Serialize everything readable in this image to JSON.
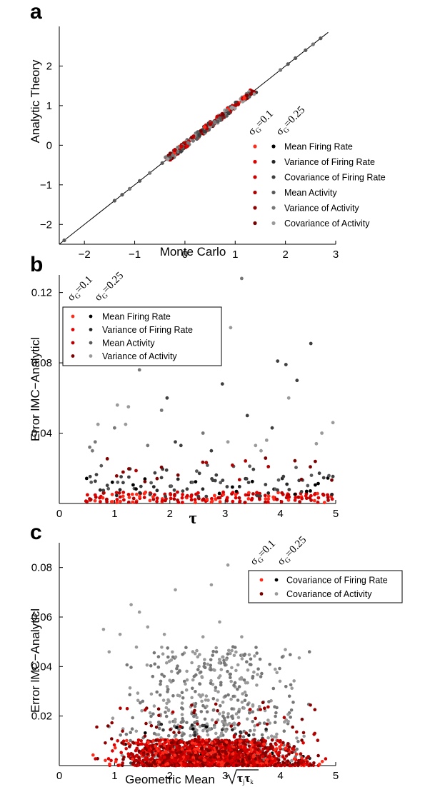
{
  "colors": {
    "sigma01": [
      "#ff2a1a",
      "#e00000",
      "#cc0000",
      "#b00000",
      "#8f0000",
      "#7a0000"
    ],
    "sigma025": [
      "#000000",
      "#262626",
      "#3f3f3f",
      "#595959",
      "#777777",
      "#9a9a9a"
    ]
  },
  "chart_data": [
    {
      "type": "scatter",
      "panel_label": "a",
      "xlabel": "Monte Carlo",
      "ylabel": "Analytic Theory",
      "xlim": [
        -2.5,
        3
      ],
      "ylim": [
        -2.5,
        3
      ],
      "xticks": [
        "−2",
        "−1",
        "0",
        "1",
        "2",
        "3"
      ],
      "yticks": [
        "−2",
        "−1",
        "0",
        "1",
        "2"
      ],
      "sigma_labels": [
        "σ_G=0.1",
        "σ_G=0.25"
      ],
      "legend": [
        "Mean Firing Rate",
        "Variance of Firing Rate",
        "Covariance of Firing Rate",
        "Mean Activity",
        "Variance of Activity",
        "Covariance of Activity"
      ],
      "legend_position": "right",
      "identity_line": true,
      "outliers": [
        [
          -2.4,
          -2.4
        ],
        [
          -1.4,
          -1.4
        ],
        [
          -1.25,
          -1.25
        ],
        [
          -1.1,
          -1.1
        ],
        [
          -0.9,
          -0.9
        ],
        [
          -0.7,
          -0.7
        ],
        [
          -0.45,
          -0.45
        ],
        [
          1.9,
          1.9
        ],
        [
          2.05,
          2.05
        ],
        [
          2.2,
          2.2
        ],
        [
          2.4,
          2.4
        ],
        [
          2.55,
          2.55
        ],
        [
          2.7,
          2.7
        ]
      ]
    },
    {
      "type": "scatter",
      "panel_label": "b",
      "xlabel": "τ",
      "ylabel": "Error lMC−Analyticl",
      "xlim": [
        0,
        5
      ],
      "ylim": [
        0,
        0.13
      ],
      "xticks": [
        "0",
        "1",
        "2",
        "3",
        "4",
        "5"
      ],
      "yticks": [
        "0.04",
        "0.08",
        "0.12"
      ],
      "sigma_labels": [
        "σ_G=0.1",
        "σ_G=0.25"
      ],
      "legend": [
        "Mean Firing Rate",
        "Variance of Firing Rate",
        "Mean Activity",
        "Variance of Activity"
      ],
      "legend_position": "top-left",
      "high_points": [
        [
          0.55,
          0.032
        ],
        [
          0.6,
          0.03
        ],
        [
          0.65,
          0.035
        ],
        [
          0.7,
          0.045
        ],
        [
          0.85,
          0.082
        ],
        [
          1.0,
          0.043
        ],
        [
          1.05,
          0.056
        ],
        [
          1.2,
          0.045
        ],
        [
          1.25,
          0.055
        ],
        [
          1.45,
          0.076
        ],
        [
          1.6,
          0.033
        ],
        [
          1.85,
          0.053
        ],
        [
          1.95,
          0.06
        ],
        [
          2.1,
          0.035
        ],
        [
          2.2,
          0.033
        ],
        [
          2.6,
          0.04
        ],
        [
          2.75,
          0.03
        ],
        [
          2.85,
          0.098
        ],
        [
          2.95,
          0.068
        ],
        [
          3.05,
          0.035
        ],
        [
          3.1,
          0.1
        ],
        [
          3.3,
          0.128
        ],
        [
          3.4,
          0.05
        ],
        [
          3.55,
          0.033
        ],
        [
          3.65,
          0.03
        ],
        [
          3.75,
          0.036
        ],
        [
          3.85,
          0.043
        ],
        [
          3.95,
          0.081
        ],
        [
          4.1,
          0.079
        ],
        [
          4.15,
          0.06
        ],
        [
          4.3,
          0.07
        ],
        [
          4.55,
          0.091
        ],
        [
          4.65,
          0.034
        ],
        [
          4.75,
          0.04
        ],
        [
          4.95,
          0.046
        ]
      ]
    },
    {
      "type": "scatter",
      "panel_label": "c",
      "xlabel": "Geometric Mean",
      "xlabel_math": "√τjτk",
      "ylabel": "Error lMC−Analyticl",
      "xlim": [
        0,
        5
      ],
      "ylim": [
        0,
        0.09
      ],
      "xticks": [
        "0",
        "1",
        "2",
        "3",
        "4",
        "5"
      ],
      "yticks": [
        "0.02",
        "0.04",
        "0.06",
        "0.08"
      ],
      "sigma_labels": [
        "σ_G=0.1",
        "σ_G=0.25"
      ],
      "legend": [
        "Covariance of Firing Rate",
        "Covariance of Activity"
      ],
      "legend_position": "top-right",
      "high_points": [
        [
          0.8,
          0.055
        ],
        [
          1.1,
          0.053
        ],
        [
          1.3,
          0.065
        ],
        [
          1.45,
          0.062
        ],
        [
          1.6,
          0.056
        ],
        [
          1.9,
          0.053
        ],
        [
          2.1,
          0.071
        ],
        [
          2.6,
          0.052
        ],
        [
          2.75,
          0.073
        ],
        [
          2.9,
          0.058
        ],
        [
          3.05,
          0.081
        ],
        [
          3.3,
          0.052
        ]
      ]
    }
  ]
}
